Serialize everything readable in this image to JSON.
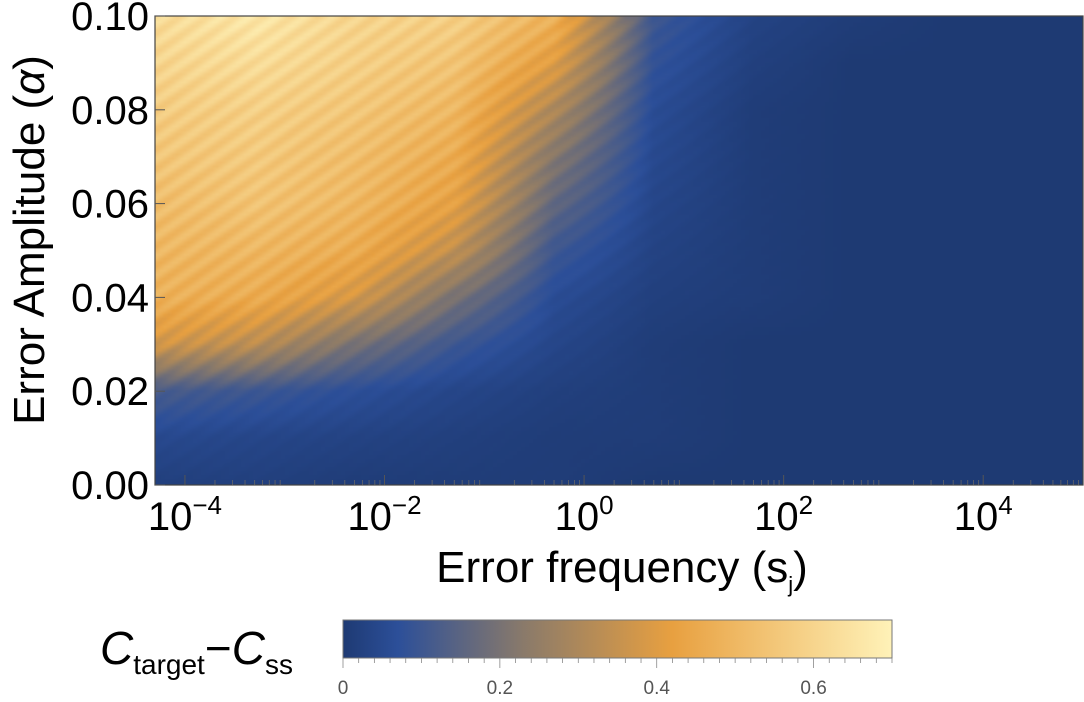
{
  "chart_data": {
    "type": "heatmap",
    "xlabel": "Error frequency (s",
    "xlabel_sub": "j",
    "xlabel_close": ")",
    "ylabel": "Error Amplitude (",
    "ylabel_greek": "α",
    "ylabel_close": ")",
    "x_scale": "log",
    "x_range_log10": [
      -4.3,
      5.0
    ],
    "x_ticks": [
      {
        "base": "10",
        "exp": "−4",
        "log10": -4
      },
      {
        "base": "10",
        "exp": "−2",
        "log10": -2
      },
      {
        "base": "10",
        "exp": "0",
        "log10": 0
      },
      {
        "base": "10",
        "exp": "2",
        "log10": 2
      },
      {
        "base": "10",
        "exp": "4",
        "log10": 4
      }
    ],
    "y_range": [
      0.0,
      0.1
    ],
    "y_ticks": [
      {
        "value": 0.0,
        "label": "0.00"
      },
      {
        "value": 0.02,
        "label": "0.02"
      },
      {
        "value": 0.04,
        "label": "0.04"
      },
      {
        "value": 0.06,
        "label": "0.06"
      },
      {
        "value": 0.08,
        "label": "0.08"
      },
      {
        "value": 0.1,
        "label": "0.10"
      }
    ],
    "z_range": [
      0,
      0.7
    ],
    "colorscale": [
      "#1e3a73",
      "#2c4f99",
      "#8a7a6a",
      "#e8a040",
      "#fff2b8"
    ],
    "colorbar": {
      "label_main1": "C",
      "label_sub1": "target",
      "label_minus": "−",
      "label_main2": "C",
      "label_sub2": "ss",
      "ticks": [
        {
          "value": 0,
          "label": "0"
        },
        {
          "value": 0.2,
          "label": "0.2"
        },
        {
          "value": 0.4,
          "label": "0.4"
        },
        {
          "value": 0.6,
          "label": "0.6"
        }
      ]
    },
    "description_of_field": {
      "grid_log10_x": [
        -4.3,
        -3.3,
        -2.3,
        -1.3,
        -0.3,
        0.7,
        1.7,
        2.7,
        3.7,
        4.7
      ],
      "grid_y": [
        0.0,
        0.01,
        0.02,
        0.03,
        0.04,
        0.05,
        0.06,
        0.07,
        0.08,
        0.09,
        0.1
      ],
      "z": [
        [
          0.02,
          0.02,
          0.01,
          0.01,
          0.01,
          0.0,
          0.0,
          0.0,
          0.0,
          0.0
        ],
        [
          0.05,
          0.04,
          0.03,
          0.02,
          0.01,
          0.01,
          0.0,
          0.0,
          0.0,
          0.0
        ],
        [
          0.12,
          0.1,
          0.07,
          0.04,
          0.02,
          0.01,
          0.0,
          0.0,
          0.0,
          0.0
        ],
        [
          0.38,
          0.33,
          0.2,
          0.1,
          0.04,
          0.01,
          0.0,
          0.0,
          0.0,
          0.0
        ],
        [
          0.48,
          0.46,
          0.38,
          0.2,
          0.06,
          0.02,
          0.01,
          0.0,
          0.0,
          0.0
        ],
        [
          0.5,
          0.5,
          0.46,
          0.34,
          0.1,
          0.03,
          0.01,
          0.0,
          0.0,
          0.0
        ],
        [
          0.52,
          0.54,
          0.5,
          0.42,
          0.16,
          0.04,
          0.01,
          0.0,
          0.0,
          0.0
        ],
        [
          0.55,
          0.56,
          0.52,
          0.46,
          0.22,
          0.05,
          0.01,
          0.0,
          0.0,
          0.0
        ],
        [
          0.57,
          0.58,
          0.55,
          0.5,
          0.3,
          0.06,
          0.01,
          0.0,
          0.0,
          0.0
        ],
        [
          0.6,
          0.62,
          0.58,
          0.54,
          0.4,
          0.08,
          0.02,
          0.0,
          0.0,
          0.0
        ],
        [
          0.62,
          0.66,
          0.6,
          0.58,
          0.48,
          0.1,
          0.03,
          0.01,
          0.0,
          0.0
        ]
      ]
    }
  }
}
